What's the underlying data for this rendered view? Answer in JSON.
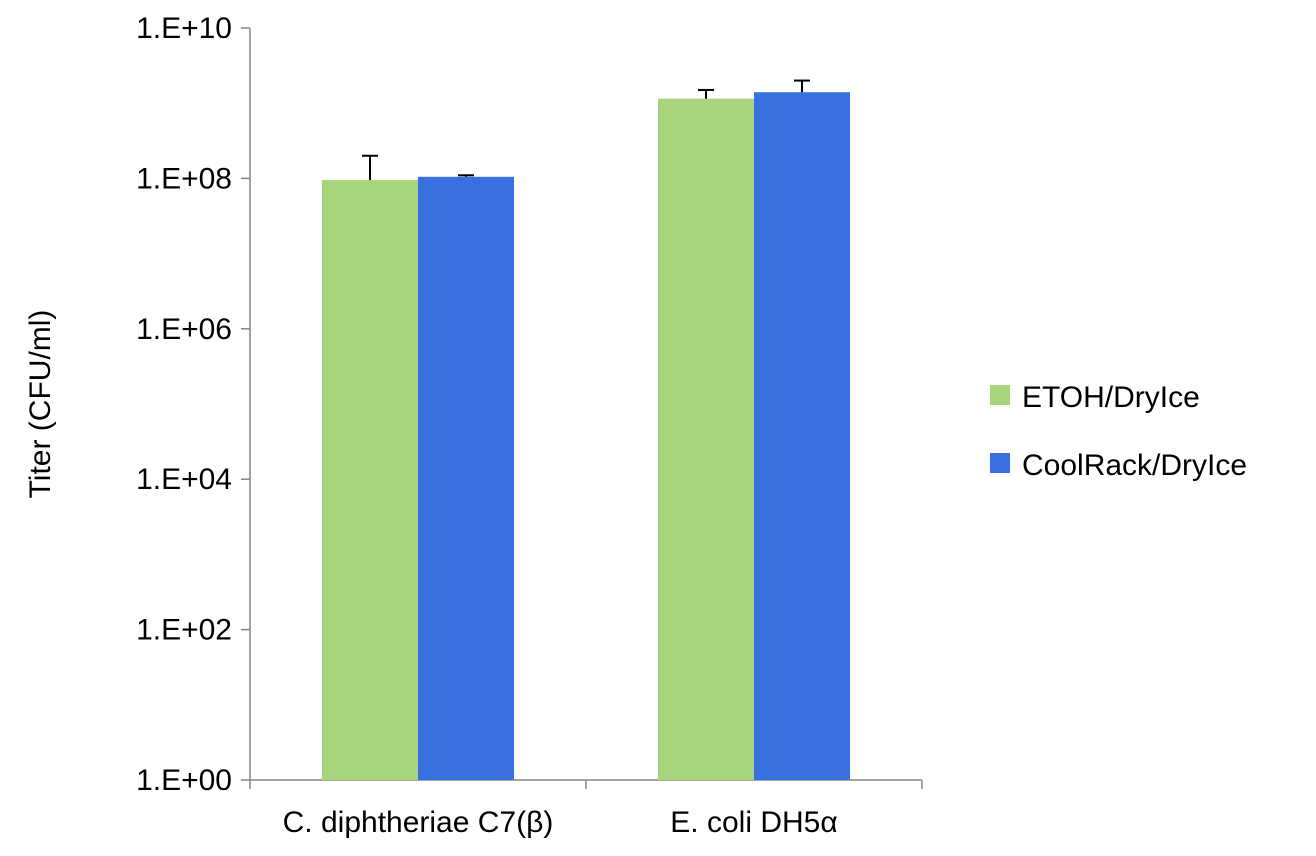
{
  "chart_data": {
    "type": "bar",
    "title": "",
    "xlabel": "",
    "ylabel": "Titer (CFU/ml)",
    "y_scale": "log10",
    "ylim": [
      1,
      10000000000
    ],
    "y_ticks": [
      1,
      100,
      10000,
      1000000,
      100000000,
      10000000000
    ],
    "y_tick_labels": [
      "1.E+00",
      "1.E+02",
      "1.E+04",
      "1.E+06",
      "1.E+08",
      "1.E+10"
    ],
    "categories": [
      "C. diphtheriae C7(β)",
      "E. coli DH5α"
    ],
    "series": [
      {
        "name": "ETOH/DryIce",
        "color": "#a9d47f",
        "values": [
          95000000,
          1150000000
        ],
        "error_plus": [
          105000000,
          350000000
        ]
      },
      {
        "name": "CoolRack/DryIce",
        "color": "#3870e0",
        "values": [
          105000000,
          1400000000
        ],
        "error_plus": [
          5000000,
          600000000
        ]
      }
    ],
    "grid": false,
    "legend_position": "right"
  }
}
